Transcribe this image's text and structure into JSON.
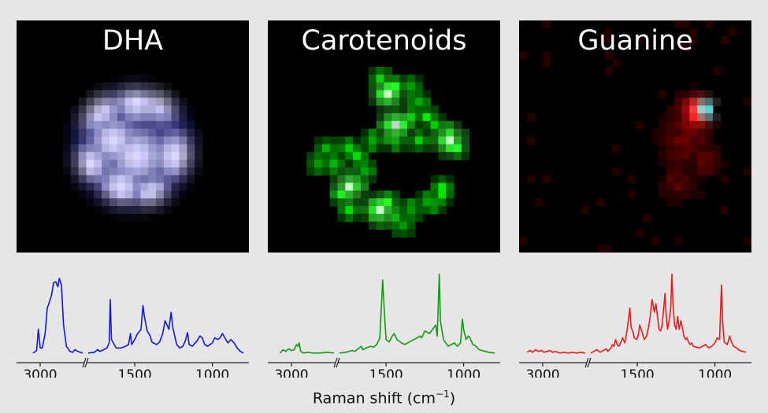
{
  "panels": [
    {
      "title": "DHA",
      "color": "#1414e6",
      "style": "dha"
    },
    {
      "title": "Carotenoids",
      "color": "#109c10",
      "style": "carotenoids"
    },
    {
      "title": "Guanine",
      "color": "#ee1a1a",
      "style": "guanine"
    }
  ],
  "xlabel_prefix": "Raman shift (cm",
  "xlabel_sup": "−1",
  "xlabel_suffix": ")",
  "chart_data": [
    {
      "type": "line",
      "title": "DHA",
      "xlabel": "Raman shift (cm−1)",
      "axis_break": [
        2700,
        1800
      ],
      "ticks": [
        3000,
        1500,
        1000
      ],
      "series": [
        {
          "color": "#1414e6",
          "segments": [
            [
              [
                3050,
                0.02
              ],
              [
                3025,
                0.05
              ],
              [
                3013,
                0.3
              ],
              [
                3000,
                0.08
              ],
              [
                2985,
                0.08
              ],
              [
                2965,
                0.25
              ],
              [
                2950,
                0.55
              ],
              [
                2935,
                0.62
              ],
              [
                2920,
                0.7
              ],
              [
                2905,
                0.85
              ],
              [
                2890,
                0.86
              ],
              [
                2875,
                0.8
              ],
              [
                2865,
                0.9
              ],
              [
                2850,
                0.82
              ],
              [
                2835,
                0.35
              ],
              [
                2815,
                0.1
              ],
              [
                2790,
                0.04
              ],
              [
                2770,
                0.03
              ],
              [
                2755,
                0.06
              ],
              [
                2735,
                0.04
              ],
              [
                2700,
                0.02
              ]
            ],
            [
              [
                1800,
                0.02
              ],
              [
                1760,
                0.03
              ],
              [
                1740,
                0.06
              ],
              [
                1725,
                0.04
              ],
              [
                1700,
                0.06
              ],
              [
                1680,
                0.08
              ],
              [
                1665,
                0.14
              ],
              [
                1658,
                0.65
              ],
              [
                1650,
                0.18
              ],
              [
                1620,
                0.08
              ],
              [
                1590,
                0.08
              ],
              [
                1560,
                0.1
              ],
              [
                1540,
                0.12
              ],
              [
                1528,
                0.25
              ],
              [
                1520,
                0.12
              ],
              [
                1500,
                0.18
              ],
              [
                1485,
                0.24
              ],
              [
                1460,
                0.3
              ],
              [
                1447,
                0.58
              ],
              [
                1438,
                0.45
              ],
              [
                1420,
                0.28
              ],
              [
                1400,
                0.22
              ],
              [
                1390,
                0.15
              ],
              [
                1360,
                0.12
              ],
              [
                1340,
                0.15
              ],
              [
                1320,
                0.25
              ],
              [
                1305,
                0.4
              ],
              [
                1295,
                0.36
              ],
              [
                1280,
                0.3
              ],
              [
                1266,
                0.5
              ],
              [
                1255,
                0.32
              ],
              [
                1230,
                0.12
              ],
              [
                1210,
                0.08
              ],
              [
                1190,
                0.1
              ],
              [
                1175,
                0.16
              ],
              [
                1160,
                0.26
              ],
              [
                1150,
                0.12
              ],
              [
                1130,
                0.1
              ],
              [
                1100,
                0.16
              ],
              [
                1080,
                0.22
              ],
              [
                1065,
                0.2
              ],
              [
                1050,
                0.12
              ],
              [
                1030,
                0.1
              ],
              [
                1000,
                0.14
              ],
              [
                985,
                0.2
              ],
              [
                965,
                0.18
              ],
              [
                950,
                0.2
              ],
              [
                935,
                0.25
              ],
              [
                920,
                0.2
              ],
              [
                900,
                0.14
              ],
              [
                880,
                0.18
              ],
              [
                860,
                0.14
              ],
              [
                840,
                0.08
              ],
              [
                820,
                0.04
              ],
              [
                800,
                0.02
              ]
            ]
          ]
        }
      ]
    },
    {
      "type": "line",
      "title": "Carotenoids",
      "xlabel": "Raman shift (cm−1)",
      "axis_break": [
        2700,
        1800
      ],
      "ticks": [
        3000,
        1500,
        1000
      ],
      "series": [
        {
          "color": "#109c10",
          "segments": [
            [
              [
                3080,
                0.02
              ],
              [
                3060,
                0.06
              ],
              [
                3040,
                0.04
              ],
              [
                3020,
                0.07
              ],
              [
                3000,
                0.05
              ],
              [
                2980,
                0.06
              ],
              [
                2965,
                0.12
              ],
              [
                2955,
                0.1
              ],
              [
                2945,
                0.14
              ],
              [
                2935,
                0.04
              ],
              [
                2915,
                0.02
              ],
              [
                2880,
                0.03
              ],
              [
                2850,
                0.02
              ],
              [
                2800,
                0.02
              ],
              [
                2750,
                0.03
              ],
              [
                2700,
                0.02
              ]
            ],
            [
              [
                1800,
                0.02
              ],
              [
                1760,
                0.03
              ],
              [
                1720,
                0.05
              ],
              [
                1700,
                0.04
              ],
              [
                1680,
                0.07
              ],
              [
                1660,
                0.1
              ],
              [
                1650,
                0.06
              ],
              [
                1630,
                0.08
              ],
              [
                1600,
                0.1
              ],
              [
                1580,
                0.09
              ],
              [
                1560,
                0.12
              ],
              [
                1540,
                0.2
              ],
              [
                1522,
                0.88
              ],
              [
                1512,
                0.55
              ],
              [
                1500,
                0.18
              ],
              [
                1480,
                0.15
              ],
              [
                1460,
                0.22
              ],
              [
                1447,
                0.25
              ],
              [
                1430,
                0.18
              ],
              [
                1400,
                0.14
              ],
              [
                1380,
                0.12
              ],
              [
                1360,
                0.14
              ],
              [
                1340,
                0.16
              ],
              [
                1320,
                0.18
              ],
              [
                1300,
                0.2
              ],
              [
                1280,
                0.22
              ],
              [
                1270,
                0.2
              ],
              [
                1250,
                0.28
              ],
              [
                1220,
                0.25
              ],
              [
                1200,
                0.3
              ],
              [
                1180,
                0.35
              ],
              [
                1170,
                0.22
              ],
              [
                1157,
                0.95
              ],
              [
                1150,
                0.4
              ],
              [
                1130,
                0.18
              ],
              [
                1100,
                0.1
              ],
              [
                1080,
                0.12
              ],
              [
                1060,
                0.14
              ],
              [
                1040,
                0.1
              ],
              [
                1020,
                0.14
              ],
              [
                1008,
                0.42
              ],
              [
                1000,
                0.3
              ],
              [
                985,
                0.18
              ],
              [
                970,
                0.22
              ],
              [
                960,
                0.2
              ],
              [
                940,
                0.12
              ],
              [
                920,
                0.1
              ],
              [
                900,
                0.06
              ],
              [
                880,
                0.05
              ],
              [
                860,
                0.04
              ],
              [
                840,
                0.03
              ],
              [
                800,
                0.02
              ]
            ]
          ]
        }
      ]
    },
    {
      "type": "line",
      "title": "Guanine",
      "xlabel": "Raman shift (cm−1)",
      "axis_break": [
        2700,
        1800
      ],
      "ticks": [
        3000,
        1500,
        1000
      ],
      "series": [
        {
          "color": "#ee1a1a",
          "segments": [
            [
              [
                3110,
                0.03
              ],
              [
                3090,
                0.05
              ],
              [
                3070,
                0.03
              ],
              [
                3050,
                0.06
              ],
              [
                3030,
                0.04
              ],
              [
                3010,
                0.05
              ],
              [
                2990,
                0.03
              ],
              [
                2970,
                0.04
              ],
              [
                2950,
                0.05
              ],
              [
                2930,
                0.03
              ],
              [
                2910,
                0.04
              ],
              [
                2880,
                0.02
              ],
              [
                2850,
                0.03
              ],
              [
                2820,
                0.02
              ],
              [
                2790,
                0.03
              ],
              [
                2760,
                0.02
              ],
              [
                2730,
                0.03
              ],
              [
                2700,
                0.02
              ]
            ],
            [
              [
                1800,
                0.02
              ],
              [
                1780,
                0.04
              ],
              [
                1760,
                0.06
              ],
              [
                1740,
                0.03
              ],
              [
                1720,
                0.05
              ],
              [
                1700,
                0.07
              ],
              [
                1690,
                0.04
              ],
              [
                1670,
                0.08
              ],
              [
                1660,
                0.12
              ],
              [
                1650,
                0.1
              ],
              [
                1640,
                0.18
              ],
              [
                1630,
                0.12
              ],
              [
                1620,
                0.1
              ],
              [
                1605,
                0.15
              ],
              [
                1595,
                0.2
              ],
              [
                1580,
                0.14
              ],
              [
                1565,
                0.3
              ],
              [
                1555,
                0.45
              ],
              [
                1548,
                0.55
              ],
              [
                1540,
                0.32
              ],
              [
                1530,
                0.28
              ],
              [
                1520,
                0.2
              ],
              [
                1505,
                0.18
              ],
              [
                1495,
                0.22
              ],
              [
                1485,
                0.35
              ],
              [
                1475,
                0.3
              ],
              [
                1465,
                0.24
              ],
              [
                1455,
                0.18
              ],
              [
                1440,
                0.22
              ],
              [
                1425,
                0.35
              ],
              [
                1415,
                0.48
              ],
              [
                1405,
                0.65
              ],
              [
                1398,
                0.58
              ],
              [
                1390,
                0.5
              ],
              [
                1380,
                0.6
              ],
              [
                1370,
                0.45
              ],
              [
                1360,
                0.3
              ],
              [
                1350,
                0.28
              ],
              [
                1340,
                0.35
              ],
              [
                1330,
                0.55
              ],
              [
                1322,
                0.72
              ],
              [
                1315,
                0.5
              ],
              [
                1305,
                0.3
              ],
              [
                1295,
                0.4
              ],
              [
                1285,
                0.55
              ],
              [
                1277,
                0.95
              ],
              [
                1270,
                0.6
              ],
              [
                1260,
                0.35
              ],
              [
                1250,
                0.3
              ],
              [
                1240,
                0.45
              ],
              [
                1230,
                0.3
              ],
              [
                1220,
                0.4
              ],
              [
                1210,
                0.32
              ],
              [
                1200,
                0.22
              ],
              [
                1190,
                0.18
              ],
              [
                1180,
                0.2
              ],
              [
                1170,
                0.15
              ],
              [
                1160,
                0.12
              ],
              [
                1150,
                0.14
              ],
              [
                1140,
                0.1
              ],
              [
                1120,
                0.09
              ],
              [
                1100,
                0.08
              ],
              [
                1080,
                0.1
              ],
              [
                1060,
                0.12
              ],
              [
                1040,
                0.08
              ],
              [
                1020,
                0.1
              ],
              [
                1000,
                0.14
              ],
              [
                985,
                0.2
              ],
              [
                970,
                0.18
              ],
              [
                958,
                0.82
              ],
              [
                950,
                0.4
              ],
              [
                940,
                0.15
              ],
              [
                920,
                0.12
              ],
              [
                905,
                0.22
              ],
              [
                895,
                0.16
              ],
              [
                880,
                0.1
              ],
              [
                860,
                0.08
              ],
              [
                840,
                0.05
              ],
              [
                820,
                0.04
              ],
              [
                800,
                0.03
              ]
            ]
          ]
        }
      ]
    }
  ]
}
